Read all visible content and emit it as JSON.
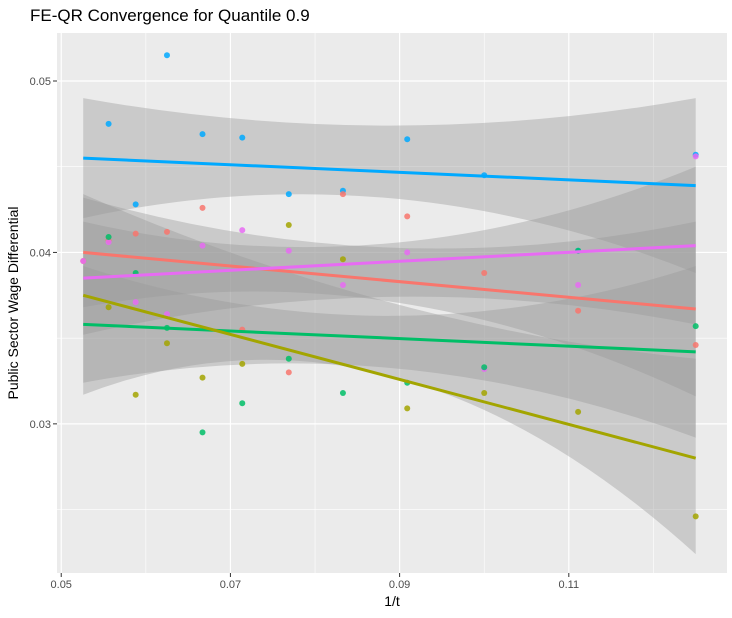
{
  "chart_data": {
    "type": "scatter",
    "title": "FE-QR Convergence for Quantile 0.9",
    "xlabel": "1/t",
    "ylabel": "Public Sector Wage Differential",
    "xlim": [
      0.0495,
      0.1287
    ],
    "ylim": [
      0.0213,
      0.0528
    ],
    "x_ticks": [
      0.05,
      0.07,
      0.09,
      0.11
    ],
    "x_tick_labels": [
      "0.05",
      "0.07",
      "0.09",
      "0.11"
    ],
    "y_ticks": [
      0.03,
      0.04,
      0.05
    ],
    "y_tick_labels": [
      "0.03",
      "0.04",
      "0.05"
    ],
    "grid": true,
    "legend": "none",
    "panel_background": "#ebebeb",
    "band_color": "#999999",
    "series": [
      {
        "color": "#00a9ff",
        "points": [
          [
            0.0556,
            0.0475
          ],
          [
            0.0588,
            0.0428
          ],
          [
            0.0625,
            0.0515
          ],
          [
            0.0667,
            0.0469
          ],
          [
            0.0714,
            0.0467
          ],
          [
            0.0769,
            0.0434
          ],
          [
            0.0833,
            0.0436
          ],
          [
            0.0909,
            0.0466
          ],
          [
            0.1,
            0.0445
          ],
          [
            0.1111,
            0.0401
          ],
          [
            0.125,
            0.0457
          ]
        ],
        "fit": [
          [
            0.0526,
            0.0455
          ],
          [
            0.125,
            0.0439
          ]
        ],
        "band_upper": [
          [
            0.0526,
            0.049
          ],
          [
            0.088,
            0.0474
          ],
          [
            0.125,
            0.049
          ]
        ],
        "band_lower": [
          [
            0.0526,
            0.042
          ],
          [
            0.088,
            0.0432
          ],
          [
            0.125,
            0.0388
          ]
        ]
      },
      {
        "color": "#f8766d",
        "points": [
          [
            0.0526,
            0.0395
          ],
          [
            0.0556,
            0.0407
          ],
          [
            0.0588,
            0.0411
          ],
          [
            0.0625,
            0.0412
          ],
          [
            0.0667,
            0.0426
          ],
          [
            0.0714,
            0.0355
          ],
          [
            0.0769,
            0.033
          ],
          [
            0.0833,
            0.0434
          ],
          [
            0.0909,
            0.0421
          ],
          [
            0.1,
            0.0388
          ],
          [
            0.1111,
            0.0366
          ],
          [
            0.125,
            0.0346
          ]
        ],
        "fit": [
          [
            0.0526,
            0.04
          ],
          [
            0.125,
            0.0367
          ]
        ],
        "band_upper": [
          [
            0.0526,
            0.0432
          ],
          [
            0.088,
            0.0403
          ],
          [
            0.125,
            0.0418
          ]
        ],
        "band_lower": [
          [
            0.0526,
            0.0368
          ],
          [
            0.088,
            0.0372
          ],
          [
            0.125,
            0.0316
          ]
        ]
      },
      {
        "color": "#e76bf3",
        "points": [
          [
            0.0526,
            0.0395
          ],
          [
            0.0556,
            0.0406
          ],
          [
            0.0588,
            0.0371
          ],
          [
            0.0625,
            0.0364
          ],
          [
            0.0667,
            0.0404
          ],
          [
            0.0714,
            0.0413
          ],
          [
            0.0769,
            0.0401
          ],
          [
            0.0833,
            0.0381
          ],
          [
            0.0909,
            0.04
          ],
          [
            0.1,
            0.0332
          ],
          [
            0.1111,
            0.0381
          ],
          [
            0.125,
            0.0456
          ]
        ],
        "fit": [
          [
            0.0526,
            0.0385
          ],
          [
            0.125,
            0.0404
          ]
        ],
        "band_upper": [
          [
            0.0526,
            0.0418
          ],
          [
            0.088,
            0.0405
          ],
          [
            0.125,
            0.045
          ]
        ],
        "band_lower": [
          [
            0.0526,
            0.0352
          ],
          [
            0.088,
            0.0374
          ],
          [
            0.125,
            0.0358
          ]
        ]
      },
      {
        "color": "#00be67",
        "points": [
          [
            0.0556,
            0.0409
          ],
          [
            0.0588,
            0.0388
          ],
          [
            0.0625,
            0.0356
          ],
          [
            0.0667,
            0.0295
          ],
          [
            0.0714,
            0.0312
          ],
          [
            0.0769,
            0.0338
          ],
          [
            0.0833,
            0.0318
          ],
          [
            0.0909,
            0.0324
          ],
          [
            0.1,
            0.0333
          ],
          [
            0.1111,
            0.0401
          ],
          [
            0.125,
            0.0357
          ]
        ],
        "fit": [
          [
            0.0526,
            0.0358
          ],
          [
            0.125,
            0.0342
          ]
        ],
        "band_upper": [
          [
            0.0526,
            0.0392
          ],
          [
            0.088,
            0.0363
          ],
          [
            0.125,
            0.0392
          ]
        ],
        "band_lower": [
          [
            0.0526,
            0.0324
          ],
          [
            0.088,
            0.0333
          ],
          [
            0.125,
            0.0292
          ]
        ]
      },
      {
        "color": "#a3a500",
        "points": [
          [
            0.0556,
            0.0368
          ],
          [
            0.0588,
            0.0317
          ],
          [
            0.0625,
            0.0347
          ],
          [
            0.0667,
            0.0327
          ],
          [
            0.0714,
            0.0335
          ],
          [
            0.0769,
            0.0416
          ],
          [
            0.0833,
            0.0396
          ],
          [
            0.0909,
            0.0309
          ],
          [
            0.1,
            0.0318
          ],
          [
            0.1111,
            0.0307
          ],
          [
            0.125,
            0.0246
          ]
        ],
        "fit": [
          [
            0.0526,
            0.0375
          ],
          [
            0.125,
            0.028
          ]
        ],
        "band_upper": [
          [
            0.0526,
            0.0434
          ],
          [
            0.088,
            0.0372
          ],
          [
            0.125,
            0.0338
          ]
        ],
        "band_lower": [
          [
            0.0526,
            0.0317
          ],
          [
            0.088,
            0.0329
          ],
          [
            0.125,
            0.0224
          ]
        ]
      }
    ]
  }
}
